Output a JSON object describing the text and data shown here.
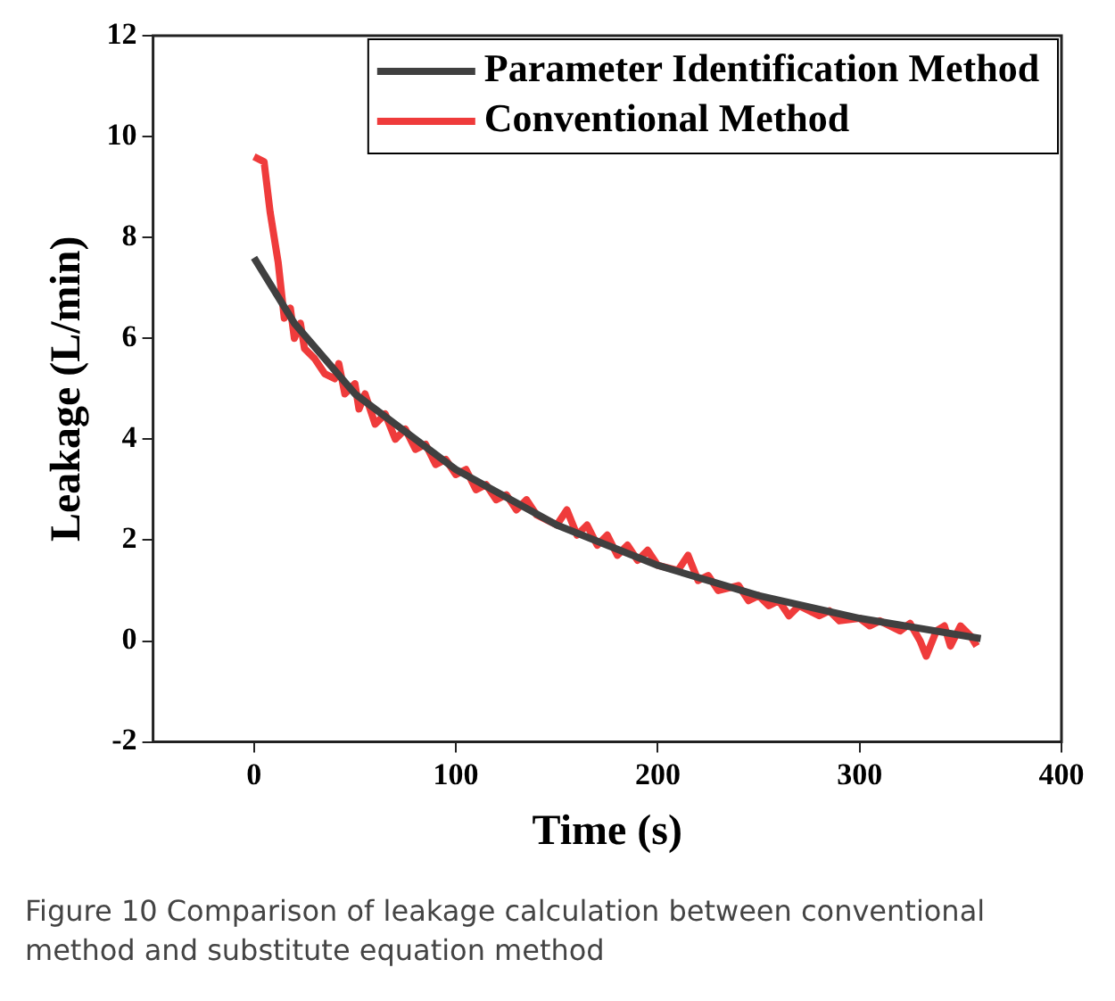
{
  "chart_data": {
    "type": "line",
    "xlabel": "Time (s)",
    "ylabel": "Leakage (L/min)",
    "xlim": [
      -50,
      400
    ],
    "xticks": [
      0,
      100,
      200,
      300,
      400
    ],
    "ylim": [
      -2,
      12
    ],
    "yticks": [
      -2,
      0,
      2,
      4,
      6,
      8,
      10,
      12
    ],
    "grid": false,
    "legend": "top right",
    "marker": "none",
    "line_style": "solid",
    "series": [
      {
        "name": "Parameter Identification Method",
        "color": "#404040",
        "x": [
          0,
          20,
          50,
          100,
          150,
          200,
          250,
          300,
          360
        ],
        "values": [
          7.6,
          6.3,
          4.9,
          3.4,
          2.3,
          1.5,
          0.9,
          0.45,
          0.05
        ]
      },
      {
        "name": "Conventional Method",
        "color": "#ef3b3b",
        "x": [
          0,
          5,
          8,
          12,
          15,
          18,
          20,
          23,
          25,
          30,
          35,
          40,
          42,
          45,
          50,
          52,
          55,
          60,
          65,
          70,
          75,
          80,
          85,
          90,
          95,
          100,
          105,
          110,
          115,
          120,
          125,
          130,
          135,
          140,
          150,
          155,
          160,
          165,
          170,
          175,
          180,
          185,
          190,
          195,
          200,
          210,
          215,
          220,
          225,
          230,
          240,
          245,
          250,
          255,
          260,
          265,
          270,
          280,
          285,
          290,
          300,
          305,
          310,
          320,
          325,
          330,
          333,
          338,
          342,
          345,
          350,
          355,
          358
        ],
        "values": [
          9.6,
          9.5,
          8.5,
          7.5,
          6.4,
          6.6,
          6.0,
          6.3,
          5.8,
          5.6,
          5.3,
          5.2,
          5.5,
          4.9,
          5.1,
          4.6,
          4.9,
          4.3,
          4.5,
          4.0,
          4.2,
          3.8,
          3.9,
          3.5,
          3.6,
          3.3,
          3.4,
          3.0,
          3.1,
          2.8,
          2.9,
          2.6,
          2.8,
          2.5,
          2.3,
          2.6,
          2.1,
          2.3,
          1.9,
          2.1,
          1.7,
          1.9,
          1.6,
          1.8,
          1.5,
          1.4,
          1.7,
          1.2,
          1.3,
          1.0,
          1.1,
          0.8,
          0.9,
          0.7,
          0.8,
          0.5,
          0.7,
          0.5,
          0.6,
          0.4,
          0.45,
          0.3,
          0.4,
          0.2,
          0.35,
          0.0,
          -0.3,
          0.2,
          0.3,
          -0.1,
          0.3,
          0.1,
          -0.1
        ]
      }
    ],
    "annotations": [
      "Figure 10  Comparison of leakage calculation between conventional method and substitute equation method"
    ]
  }
}
